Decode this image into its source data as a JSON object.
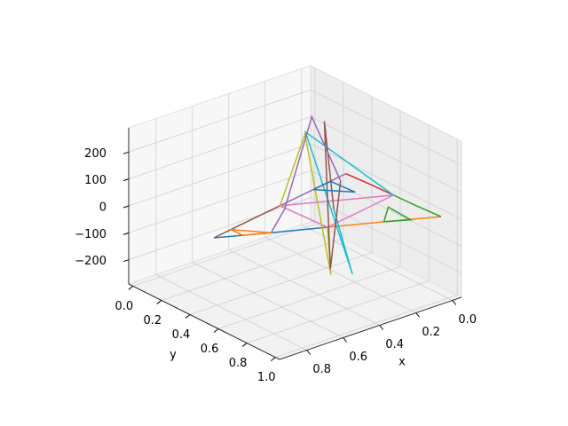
{
  "chart_data": {
    "type": "line3d",
    "xlabel": "x",
    "ylabel": "y",
    "xlim": [
      -0.05,
      0.95
    ],
    "ylim": [
      -0.03,
      1.03
    ],
    "zlim": [
      -290,
      290
    ],
    "xticks": [
      {
        "value": 0,
        "label": "0.0"
      },
      0.2,
      0.4,
      0.6,
      0.8
    ],
    "yticks": [
      {
        "value": 0,
        "label": "0.0"
      },
      0.2,
      0.4,
      0.6,
      0.8,
      {
        "value": 1,
        "label": "1.0"
      }
    ],
    "zticks": [
      {
        "value": -200,
        "label": "−200"
      },
      {
        "value": -100,
        "label": "−100"
      },
      0,
      100,
      200
    ],
    "grid": true,
    "series": [
      {
        "color": "#1f77b4",
        "x": [
          0.88,
          0.66,
          0.44
        ],
        "y": [
          0.48,
          0.6,
          0.715
        ],
        "z": [
          0,
          0,
          0
        ]
      },
      {
        "color": "#ff7f0e",
        "x": [
          0.44,
          0.22,
          0.0
        ],
        "y": [
          0.715,
          0.83,
          0.95
        ],
        "z": [
          0,
          0,
          0
        ]
      },
      {
        "color": "#2ca02c",
        "x": [
          0.0,
          0.01,
          0.015
        ],
        "y": [
          0.95,
          0.79,
          0.635
        ],
        "z": [
          0,
          0,
          0
        ]
      },
      {
        "color": "#d62728",
        "x": [
          0.015,
          0.02,
          0.03
        ],
        "y": [
          0.635,
          0.48,
          0.32
        ],
        "z": [
          0,
          0,
          0
        ]
      },
      {
        "color": "#9467bd",
        "x": [
          0.03,
          0.24,
          0.455
        ],
        "y": [
          0.32,
          0.36,
          0.4
        ],
        "z": [
          0,
          0,
          0
        ]
      },
      {
        "color": "#8c564b",
        "x": [
          0.455,
          0.67,
          0.88
        ],
        "y": [
          0.4,
          0.44,
          0.48
        ],
        "z": [
          0,
          0,
          0
        ]
      },
      {
        "color": "#e377c2",
        "x": [
          0.44,
          0.015,
          0.455,
          0.44
        ],
        "y": [
          0.715,
          0.635,
          0.4,
          0.715
        ],
        "z": [
          0,
          0,
          0,
          0
        ]
      },
      {
        "color": "#bcbd22",
        "x": [
          0.455,
          0.38,
          0.3,
          0.44
        ],
        "y": [
          0.4,
          0.48,
          0.56,
          0.715
        ],
        "z": [
          0,
          270,
          -250,
          0
        ]
      },
      {
        "color": "#17becf",
        "x": [
          0.015,
          0.33,
          0.26,
          0.3
        ],
        "y": [
          0.635,
          0.42,
          0.66,
          0.58
        ],
        "z": [
          0,
          250,
          -230,
          0
        ]
      },
      {
        "color": "#8c564b",
        "x": [
          0.3,
          0.25,
          0.35,
          0.2
        ],
        "y": [
          0.58,
          0.45,
          0.62,
          0.5
        ],
        "z": [
          0,
          280,
          -200,
          60
        ]
      },
      {
        "color": "#9467bd",
        "x": [
          0.2,
          0.28,
          0.46,
          0.66
        ],
        "y": [
          0.5,
          0.4,
          0.44,
          0.6
        ],
        "z": [
          60,
          290,
          0,
          0
        ]
      },
      {
        "color": "#ff7f0e",
        "x": [
          0.66,
          0.77,
          0.77,
          0.66
        ],
        "y": [
          0.6,
          0.54,
          0.46,
          0.6
        ],
        "z": [
          0,
          0,
          0,
          0
        ]
      },
      {
        "color": "#2ca02c",
        "x": [
          0.22,
          0.12,
          0.11,
          0.22
        ],
        "y": [
          0.83,
          0.89,
          0.72,
          0.83
        ],
        "z": [
          0,
          0,
          0,
          0
        ]
      },
      {
        "color": "#1f77b4",
        "x": [
          0.24,
          0.13,
          0.12,
          0.24
        ],
        "y": [
          0.36,
          0.34,
          0.5,
          0.36
        ],
        "z": [
          0,
          0,
          0,
          0
        ]
      }
    ]
  }
}
